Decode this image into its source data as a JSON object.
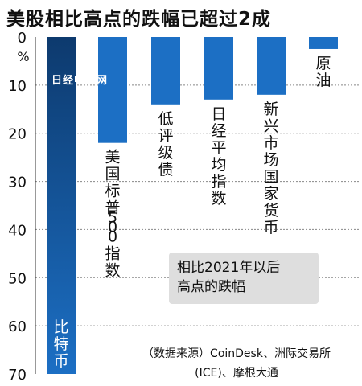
{
  "title": "美股相比高点的跌幅已超过2成",
  "watermark": "日经中文网",
  "note": [
    "相比2021年以后",
    "高点的跌幅"
  ],
  "source": [
    "（数据来源）CoinDesk、洲际交易所",
    "(ICE)、摩根大通"
  ],
  "colors": {
    "bar": "#1c6fc4",
    "bar_dark": "#0d3a6e",
    "grid": "#888888"
  },
  "chart_data": {
    "type": "bar",
    "orientation": "vertical-downward",
    "unit": "%",
    "categories": [
      "比特币",
      "美国标普500指数",
      "低评级债",
      "日经平均指数",
      "新兴市场国家货币",
      "原油"
    ],
    "values": [
      70,
      22,
      14,
      13,
      12,
      2.5
    ],
    "yticks": [
      0,
      10,
      20,
      30,
      40,
      50,
      60,
      70
    ],
    "ylim": [
      0,
      70
    ],
    "grid": true
  }
}
